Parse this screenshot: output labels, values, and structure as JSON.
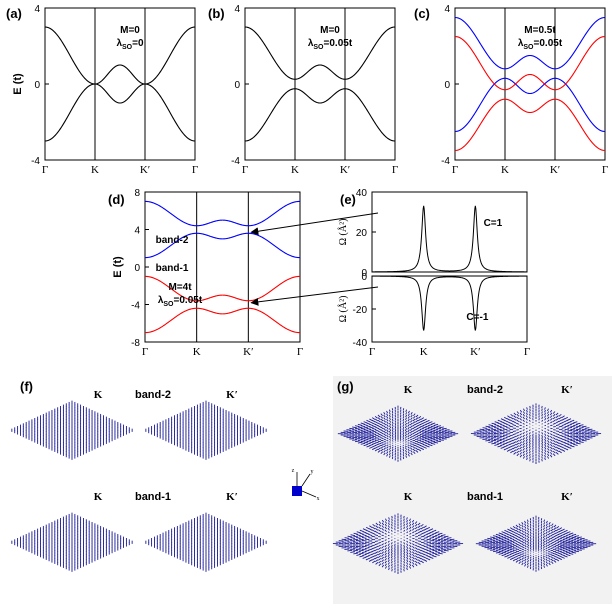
{
  "chart_data": [
    {
      "type": "line",
      "panel": "(a)",
      "annotation": [
        "M=0",
        "λSO=0"
      ],
      "ylabel": "E (t)",
      "ylim": [
        -4,
        4
      ],
      "yticks": [
        "4",
        "0",
        "-4"
      ],
      "xticks": [
        "Γ",
        "K",
        "K′",
        "Γ"
      ],
      "series": [
        {
          "color": "#000000",
          "x": [
            0,
            1,
            1.5,
            2,
            3
          ],
          "values": [
            3.0,
            0.0,
            1.0,
            0.0,
            3.0
          ]
        },
        {
          "color": "#000000",
          "x": [
            0,
            1,
            1.5,
            2,
            3
          ],
          "values": [
            -3.0,
            0.0,
            -1.0,
            0.0,
            -3.0
          ]
        }
      ]
    },
    {
      "type": "line",
      "panel": "(b)",
      "annotation": [
        "M=0",
        "λSO=0.05t"
      ],
      "ylim": [
        -4,
        4
      ],
      "yticks": [
        "4",
        "0",
        "-4"
      ],
      "xticks": [
        "Γ",
        "K",
        "K′",
        "Γ"
      ],
      "series": [
        {
          "color": "#000000",
          "x": [
            0,
            1,
            1.5,
            2,
            3
          ],
          "values": [
            3.0,
            0.25,
            1.0,
            0.25,
            3.0
          ]
        },
        {
          "color": "#000000",
          "x": [
            0,
            1,
            1.5,
            2,
            3
          ],
          "values": [
            -3.0,
            -0.25,
            -1.0,
            -0.25,
            -3.0
          ]
        }
      ]
    },
    {
      "type": "line",
      "panel": "(c)",
      "annotation": [
        "M=0.5t",
        "λSO=0.05t"
      ],
      "ylim": [
        -4,
        4
      ],
      "yticks": [
        "4",
        "0",
        "-4"
      ],
      "xticks": [
        "Γ",
        "K",
        "K′",
        "Γ"
      ],
      "series": [
        {
          "color": "#0000ff",
          "x": [
            0,
            1,
            1.5,
            2,
            3
          ],
          "values": [
            3.5,
            0.8,
            1.5,
            0.8,
            3.5
          ]
        },
        {
          "color": "#0000ff",
          "x": [
            0,
            1,
            1.5,
            2,
            3
          ],
          "values": [
            -2.5,
            0.3,
            -0.5,
            0.3,
            -2.5
          ]
        },
        {
          "color": "#ff0000",
          "x": [
            0,
            1,
            1.5,
            2,
            3
          ],
          "values": [
            2.5,
            -0.3,
            0.5,
            -0.3,
            2.5
          ]
        },
        {
          "color": "#ff0000",
          "x": [
            0,
            1,
            1.5,
            2,
            3
          ],
          "values": [
            -3.5,
            -0.8,
            -1.5,
            -0.8,
            -3.5
          ]
        }
      ]
    },
    {
      "type": "line",
      "panel": "(d)",
      "annotation": [
        "M=4t",
        "λSO=0.05t"
      ],
      "band_labels": [
        "band-2",
        "band-1"
      ],
      "ylabel": "E (t)",
      "ylim": [
        -8,
        8
      ],
      "yticks": [
        "8",
        "4",
        "0",
        "-4",
        "-8"
      ],
      "xticks": [
        "Γ",
        "K",
        "K′",
        "Γ"
      ],
      "series": [
        {
          "color": "#0000ff",
          "x": [
            0,
            1,
            1.5,
            2,
            3
          ],
          "values": [
            7.0,
            4.4,
            5.0,
            4.4,
            7.0
          ]
        },
        {
          "color": "#0000ff",
          "x": [
            0,
            1,
            1.5,
            2,
            3
          ],
          "values": [
            1.0,
            3.6,
            3.0,
            3.6,
            1.0
          ]
        },
        {
          "color": "#ff0000",
          "x": [
            0,
            1,
            1.5,
            2,
            3
          ],
          "values": [
            -1.0,
            -3.6,
            -3.0,
            -3.6,
            -1.0
          ]
        },
        {
          "color": "#ff0000",
          "x": [
            0,
            1,
            1.5,
            2,
            3
          ],
          "values": [
            -7.0,
            -4.4,
            -5.0,
            -4.4,
            -7.0
          ]
        }
      ]
    },
    {
      "type": "line",
      "panel": "(e)",
      "ylabel": "Ω (Å²)",
      "subplots": [
        {
          "label": "C=1",
          "ylim": [
            0,
            40
          ],
          "yticks": [
            "40",
            "20",
            "0"
          ],
          "peak": 33
        },
        {
          "label": "C=-1",
          "ylim": [
            -40,
            0
          ],
          "yticks": [
            "0",
            "-20",
            "-40"
          ],
          "peak": -33
        }
      ],
      "xticks": [
        "Γ",
        "K",
        "K′",
        "Γ"
      ]
    }
  ],
  "vector_panels": {
    "f": {
      "panel": "(f)",
      "labels": {
        "tl": "K",
        "tr": "K′",
        "band_top": "band-2",
        "bl": "K",
        "br": "K′",
        "band_bottom": "band-1"
      }
    },
    "g": {
      "panel": "(g)",
      "labels": {
        "tl": "K",
        "tr": "K′",
        "band_top": "band-2",
        "bl": "K",
        "br": "K′",
        "band_bottom": "band-1"
      }
    },
    "axes_icon": {
      "x": "x",
      "y": "y",
      "z": "z"
    }
  },
  "colors": {
    "blue": "#0000ff",
    "red": "#ff0000",
    "black": "#000000",
    "arrow": "#1a1a9a"
  }
}
